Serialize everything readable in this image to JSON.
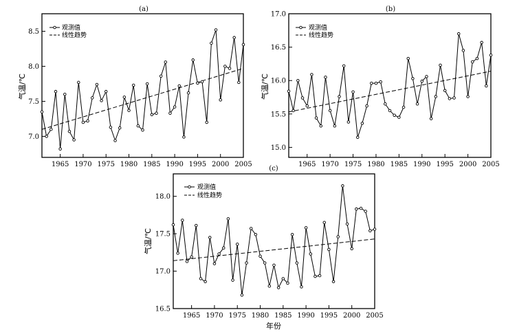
{
  "chart_data": [
    {
      "type": "line",
      "title": "(a)",
      "ylabel": "气温/℃",
      "xlabel": "",
      "xlim": [
        1961,
        2005
      ],
      "ylim": [
        6.7,
        8.75
      ],
      "xticks": [
        1965,
        1970,
        1975,
        1980,
        1985,
        1990,
        1995,
        2000,
        2005
      ],
      "yticks": [
        7.0,
        7.5,
        8.0,
        8.5
      ],
      "ytick_labels": [
        "7.0",
        "7.5",
        "8.0",
        "8.5"
      ],
      "legend": {
        "placement": "top-left",
        "observed": "观测值",
        "trend": "线性趋势"
      },
      "x": [
        1961,
        1962,
        1963,
        1964,
        1965,
        1966,
        1967,
        1968,
        1969,
        1970,
        1971,
        1972,
        1973,
        1974,
        1975,
        1976,
        1977,
        1978,
        1979,
        1980,
        1981,
        1982,
        1983,
        1984,
        1985,
        1986,
        1987,
        1988,
        1989,
        1990,
        1991,
        1992,
        1993,
        1994,
        1995,
        1996,
        1997,
        1998,
        1999,
        2000,
        2001,
        2002,
        2003,
        2004,
        2005
      ],
      "series": [
        {
          "values": [
            7.35,
            7.0,
            7.1,
            7.64,
            6.82,
            7.6,
            7.07,
            6.95,
            7.77,
            7.2,
            7.22,
            7.55,
            7.74,
            7.51,
            7.64,
            7.13,
            6.94,
            7.12,
            7.56,
            7.37,
            7.73,
            7.15,
            7.09,
            7.75,
            7.31,
            7.33,
            7.86,
            8.06,
            7.33,
            7.42,
            7.72,
            6.99,
            7.62,
            8.09,
            7.76,
            7.78,
            7.2,
            8.33,
            8.52,
            7.52,
            8.0,
            7.97,
            8.41,
            7.77,
            8.31
          ]
        },
        {
          "values_at_ends": [
            7.1,
            7.97
          ]
        }
      ]
    },
    {
      "type": "line",
      "title": "(b)",
      "ylabel": "气温/℃",
      "xlabel": "",
      "xlim": [
        1961,
        2005
      ],
      "ylim": [
        14.85,
        17.0
      ],
      "xticks": [
        1965,
        1970,
        1975,
        1980,
        1985,
        1990,
        1995,
        2000,
        2005
      ],
      "yticks": [
        15.0,
        15.5,
        16.0,
        16.5,
        17.0
      ],
      "ytick_labels": [
        "15.0",
        "15.5",
        "16.0",
        "16.5",
        "17.0"
      ],
      "legend": {
        "placement": "top-left",
        "observed": "观测值",
        "trend": "线性趋势"
      },
      "x": [
        1961,
        1962,
        1963,
        1964,
        1965,
        1966,
        1967,
        1968,
        1969,
        1970,
        1971,
        1972,
        1973,
        1974,
        1975,
        1976,
        1977,
        1978,
        1979,
        1980,
        1981,
        1982,
        1983,
        1984,
        1985,
        1986,
        1987,
        1988,
        1989,
        1990,
        1991,
        1992,
        1993,
        1994,
        1995,
        1996,
        1997,
        1998,
        1999,
        2000,
        2001,
        2002,
        2003,
        2004,
        2005
      ],
      "series": [
        {
          "values": [
            15.84,
            15.55,
            16.0,
            15.74,
            15.62,
            16.09,
            15.44,
            15.32,
            16.05,
            15.55,
            15.32,
            15.76,
            16.22,
            15.38,
            15.83,
            15.15,
            15.36,
            15.62,
            15.96,
            15.96,
            15.98,
            15.65,
            15.55,
            15.48,
            15.45,
            15.6,
            16.33,
            16.03,
            15.65,
            15.99,
            16.06,
            15.43,
            15.76,
            16.23,
            15.85,
            15.73,
            15.74,
            16.7,
            16.45,
            15.76,
            16.28,
            16.33,
            16.57,
            15.92,
            16.38
          ]
        },
        {
          "values_at_ends": [
            15.53,
            16.14
          ]
        }
      ]
    },
    {
      "type": "line",
      "title": "(c)",
      "ylabel": "气温/℃",
      "xlabel": "年份",
      "xlim": [
        1961,
        2005
      ],
      "ylim": [
        16.5,
        18.3
      ],
      "xticks": [
        1965,
        1970,
        1975,
        1980,
        1985,
        1990,
        1995,
        2000,
        2005
      ],
      "yticks": [
        16.5,
        17.0,
        17.5,
        18.0
      ],
      "ytick_labels": [
        "16.5",
        "17.0",
        "17.5",
        "18.0"
      ],
      "legend": {
        "placement": "top-left",
        "observed": "观测值",
        "trend": "线性趋势"
      },
      "x": [
        1961,
        1962,
        1963,
        1964,
        1965,
        1966,
        1967,
        1968,
        1969,
        1970,
        1971,
        1972,
        1973,
        1974,
        1975,
        1976,
        1977,
        1978,
        1979,
        1980,
        1981,
        1982,
        1983,
        1984,
        1985,
        1986,
        1987,
        1988,
        1989,
        1990,
        1991,
        1992,
        1993,
        1994,
        1995,
        1996,
        1997,
        1998,
        1999,
        2000,
        2001,
        2002,
        2003,
        2004,
        2005
      ],
      "series": [
        {
          "values": [
            17.62,
            17.24,
            17.68,
            17.13,
            17.19,
            17.61,
            16.9,
            16.86,
            17.45,
            17.1,
            17.23,
            17.31,
            17.7,
            16.88,
            17.36,
            16.68,
            17.11,
            17.57,
            17.49,
            17.2,
            17.11,
            16.8,
            17.08,
            16.78,
            16.9,
            16.84,
            17.49,
            17.11,
            16.79,
            17.58,
            17.23,
            16.93,
            16.94,
            17.65,
            17.29,
            16.86,
            17.46,
            18.14,
            17.63,
            17.3,
            17.83,
            17.84,
            17.8,
            17.54,
            17.56
          ]
        },
        {
          "values_at_ends": [
            17.14,
            17.43
          ]
        }
      ]
    }
  ]
}
